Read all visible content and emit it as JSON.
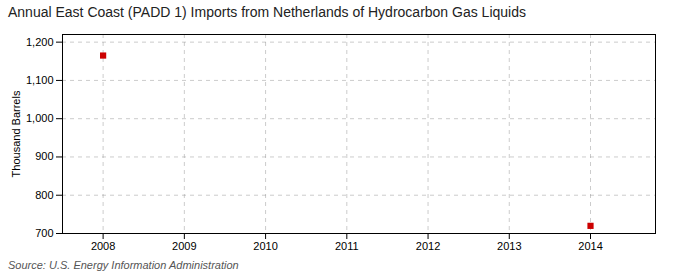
{
  "chart_data": {
    "type": "scatter",
    "title": "Annual East Coast (PADD 1) Imports from Netherlands of Hydrocarbon Gas Liquids",
    "ylabel": "Thousand Barrels",
    "source": "Source: U.S. Energy Information Administration",
    "x": [
      2008,
      2014
    ],
    "values": [
      1165,
      720
    ],
    "color": "#cc0000",
    "marker": "square",
    "xlim": [
      2007.5,
      2014.8
    ],
    "xticks": [
      2008,
      2009,
      2010,
      2011,
      2012,
      2013,
      2014
    ],
    "ylim": [
      700,
      1220
    ],
    "yticks": [
      700,
      800,
      900,
      {
        "value": 1000,
        "label": "1,000"
      },
      {
        "value": 1100,
        "label": "1,100"
      },
      {
        "value": 1200,
        "label": "1,200"
      }
    ],
    "grid": true
  }
}
